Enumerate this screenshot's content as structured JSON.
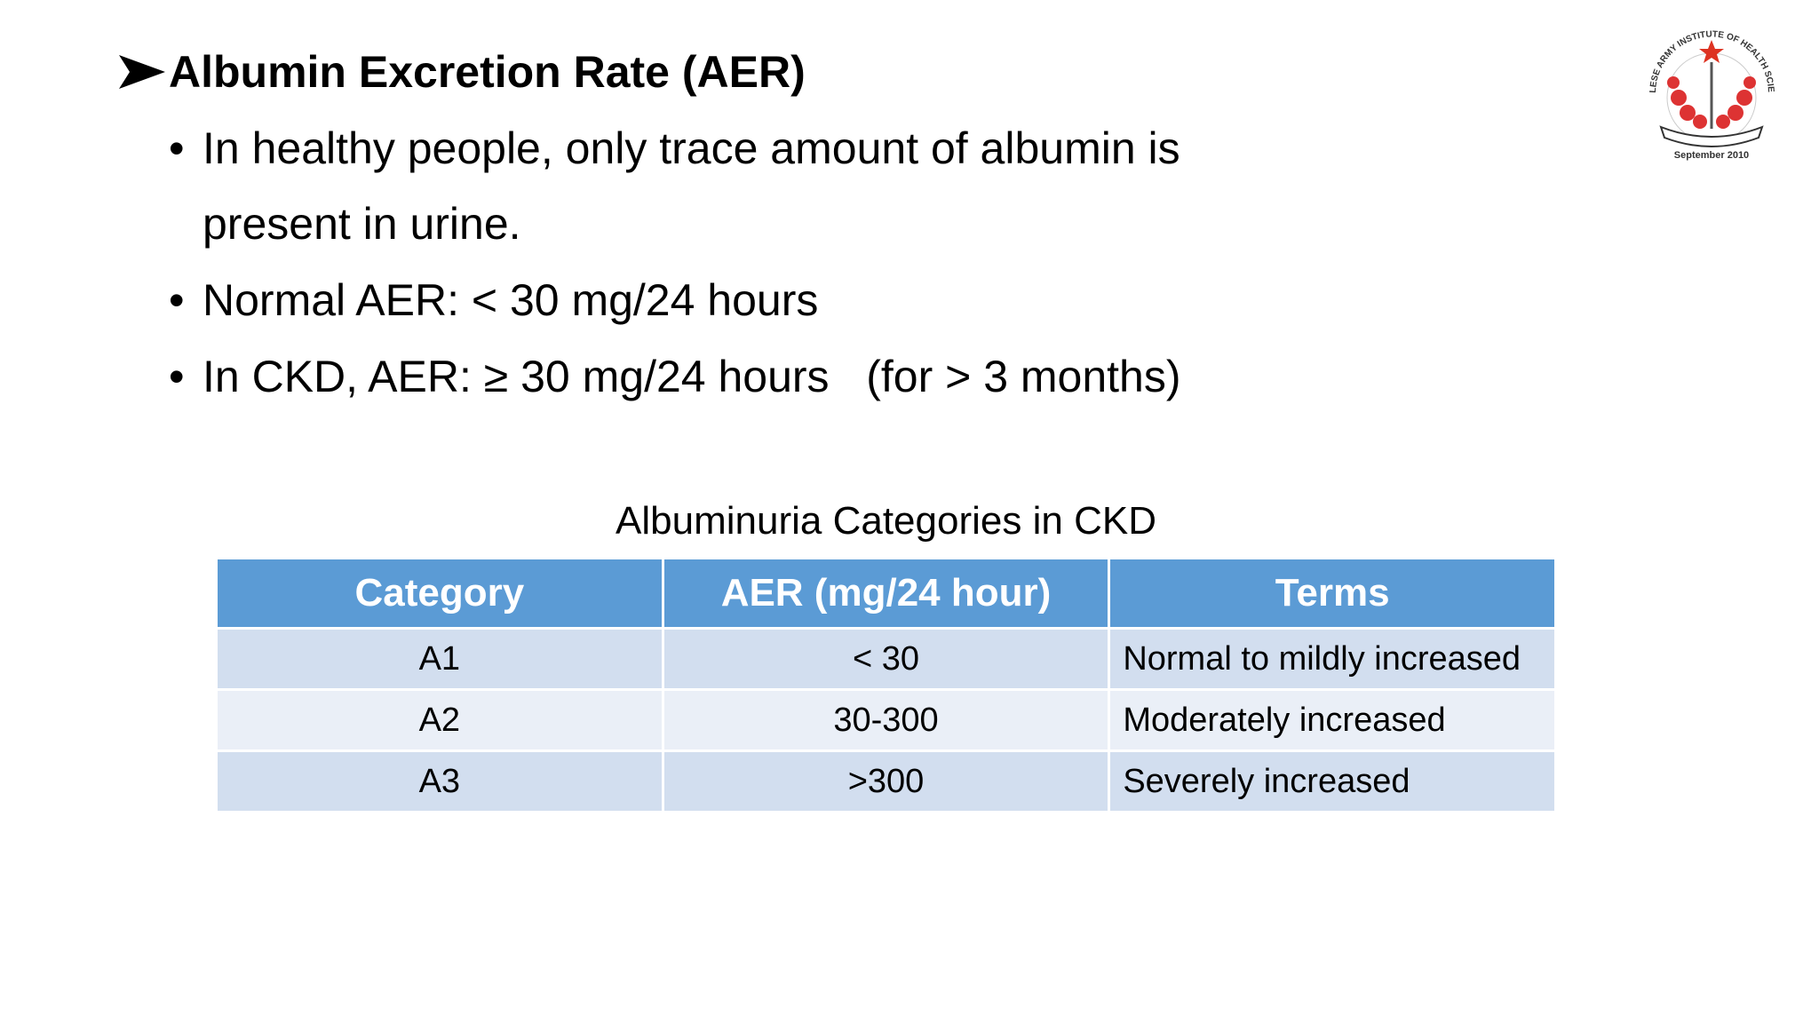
{
  "header": {
    "title": "Albumin Excretion Rate (AER)"
  },
  "bullets": [
    "In healthy people, only trace amount of albumin is present in urine.",
    "Normal AER: < 30 mg/24 hours",
    "In CKD, AER: ≥ 30 mg/24 hours   (for > 3 months)"
  ],
  "logo": {
    "name": "NEPALESE ARMY INSTITUTE OF HEALTH SCIENCES",
    "date": "September 2010"
  },
  "table": {
    "caption": "Albuminuria Categories in CKD",
    "columns": [
      "Category",
      "AER (mg/24 hour)",
      "Terms"
    ],
    "rows": [
      [
        "A1",
        "< 30",
        "Normal to mildly increased"
      ],
      [
        "A2",
        "30-300",
        "Moderately increased"
      ],
      [
        "A3",
        ">300",
        "Severely increased"
      ]
    ]
  }
}
